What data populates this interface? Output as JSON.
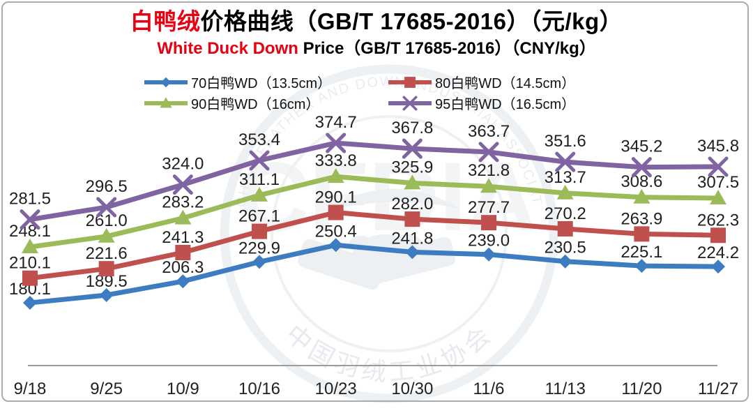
{
  "title": {
    "highlight": "白鸭绒",
    "rest": "价格曲线（GB/T 17685-2016）（元/kg）"
  },
  "subtitle": {
    "highlight": "White Duck Down",
    "rest": " Price（GB/T 17685-2016）（CNY/kg）"
  },
  "colors": {
    "accent_red": "#e60012",
    "data_label": "#1f1f1f",
    "axis_line": "#9c9c9c",
    "border": "#ababab",
    "watermark": "#edf0f3"
  },
  "watermark": {
    "cn": "中国羽绒工业协会",
    "en": "CHINA FEATHER AND DOWN INDUSTRIAL ASSOCIATION",
    "monogram": "CFDIA"
  },
  "chart_data": {
    "type": "line",
    "title": "白鸭绒价格曲线（GB/T 17685-2016）（元/kg）",
    "subtitle": "White Duck Down Price（GB/T 17685-2016）（CNY/kg）",
    "xlabel": "",
    "ylabel": "",
    "ylim": [
      168,
      380
    ],
    "grid": false,
    "legend_position": "top",
    "data_labels": true,
    "categories": [
      "9/18",
      "9/25",
      "10/9",
      "10/16",
      "10/23",
      "10/30",
      "11/6",
      "11/13",
      "11/20",
      "11/27"
    ],
    "series": [
      {
        "name": "70白鸭WD（13.5cm）",
        "marker": "diamond",
        "color": "#3e7cc1",
        "values": [
          180.1,
          189.5,
          206.3,
          229.9,
          250.4,
          241.8,
          239.0,
          230.5,
          225.1,
          224.2
        ]
      },
      {
        "name": "80白鸭WD（14.5cm）",
        "marker": "square",
        "color": "#c0504d",
        "values": [
          210.1,
          221.6,
          241.3,
          267.1,
          290.1,
          282.0,
          277.7,
          270.2,
          263.9,
          262.3
        ]
      },
      {
        "name": "90白鸭WD（16cm）",
        "marker": "triangle",
        "color": "#9bbb59",
        "values": [
          248.1,
          261.0,
          283.2,
          311.1,
          333.8,
          325.9,
          321.8,
          313.7,
          308.6,
          307.5
        ]
      },
      {
        "name": "95白鸭WD（16.5cm）",
        "marker": "x",
        "color": "#8064a2",
        "values": [
          281.5,
          296.5,
          324.0,
          353.4,
          374.7,
          367.8,
          363.7,
          351.6,
          345.2,
          345.8
        ]
      }
    ]
  }
}
